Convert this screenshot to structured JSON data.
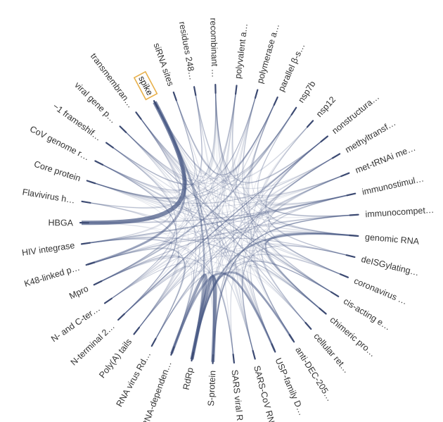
{
  "diagram": {
    "type": "circular-edge-bundling",
    "highlighted_node": "spike",
    "colors": {
      "edge": "#4a5a86",
      "tick": "#3c4a72",
      "label": "#333333",
      "highlight_box": "#e8b04a"
    },
    "nodes": [
      {
        "id": "n1",
        "label": "spike"
      },
      {
        "id": "n2",
        "label": "siRNA sites"
      },
      {
        "id": "n3",
        "label": "residues 248…"
      },
      {
        "id": "n4",
        "label": "recombinant …"
      },
      {
        "id": "n5",
        "label": "polyvalent a…"
      },
      {
        "id": "n6",
        "label": "polymerase a…"
      },
      {
        "id": "n7",
        "label": "parallel β-s…"
      },
      {
        "id": "n8",
        "label": "nsp7b"
      },
      {
        "id": "n9",
        "label": "nsp12"
      },
      {
        "id": "n10",
        "label": "nonstructura…"
      },
      {
        "id": "n11",
        "label": "methyltransf…"
      },
      {
        "id": "n12",
        "label": "met-tRNAi me…"
      },
      {
        "id": "n13",
        "label": "immunostimul…"
      },
      {
        "id": "n14",
        "label": "immunocompet…"
      },
      {
        "id": "n15",
        "label": "genomic RNA"
      },
      {
        "id": "n16",
        "label": "deISGylating…"
      },
      {
        "id": "n17",
        "label": "coronavirus …"
      },
      {
        "id": "n18",
        "label": "cis-acting e…"
      },
      {
        "id": "n19",
        "label": "chimeric pro…"
      },
      {
        "id": "n20",
        "label": "cellular ret…"
      },
      {
        "id": "n21",
        "label": "anti-DEC-205…"
      },
      {
        "id": "n22",
        "label": "USP-family D…"
      },
      {
        "id": "n23",
        "label": "SARS-CoV RNA…"
      },
      {
        "id": "n24",
        "label": "SARS viral R…"
      },
      {
        "id": "n25",
        "label": "S-protein"
      },
      {
        "id": "n26",
        "label": "RdRp"
      },
      {
        "id": "n27",
        "label": "RNA-dependen…"
      },
      {
        "id": "n28",
        "label": "RNA virus Rd…"
      },
      {
        "id": "n29",
        "label": "Poly(A) tails"
      },
      {
        "id": "n30",
        "label": "N-terminal 2…"
      },
      {
        "id": "n31",
        "label": "N- and C-ter…"
      },
      {
        "id": "n32",
        "label": "Mpro"
      },
      {
        "id": "n33",
        "label": "K48-linked p…"
      },
      {
        "id": "n34",
        "label": "HIV integrase"
      },
      {
        "id": "n35",
        "label": "HBGA"
      },
      {
        "id": "n36",
        "label": "Flavivirus h…"
      },
      {
        "id": "n37",
        "label": "Core protein"
      },
      {
        "id": "n38",
        "label": "CoV genome r…"
      },
      {
        "id": "n39",
        "label": "−1 frameshif…"
      },
      {
        "id": "n40",
        "label": "viral gene p…"
      },
      {
        "id": "n41",
        "label": "transmembran…"
      }
    ],
    "heavy_edges": [
      {
        "source": "n1",
        "target": "n35",
        "weight": 6
      },
      {
        "source": "n1",
        "target": "n33",
        "weight": 3
      },
      {
        "source": "n1",
        "target": "n26",
        "weight": 2.5
      },
      {
        "source": "n1",
        "target": "n25",
        "weight": 2
      },
      {
        "source": "n25",
        "target": "n26",
        "weight": 5
      },
      {
        "source": "n26",
        "target": "n27",
        "weight": 4
      },
      {
        "source": "n22",
        "target": "n27",
        "weight": 3
      },
      {
        "source": "n21",
        "target": "n26",
        "weight": 3
      },
      {
        "source": "n15",
        "target": "n26",
        "weight": 2.5
      },
      {
        "source": "n13",
        "target": "n34",
        "weight": 2
      },
      {
        "source": "n8",
        "target": "n32",
        "weight": 2
      },
      {
        "source": "n15",
        "target": "n19",
        "weight": 2
      },
      {
        "source": "n14",
        "target": "n25",
        "weight": 1.6
      },
      {
        "source": "n10",
        "target": "n30",
        "weight": 1.4
      },
      {
        "source": "n11",
        "target": "n25",
        "weight": 1.4
      },
      {
        "source": "n41",
        "target": "n20",
        "weight": 1.2
      },
      {
        "source": "n35",
        "target": "n13",
        "weight": 1.4
      },
      {
        "source": "n33",
        "target": "n16",
        "weight": 1.2
      },
      {
        "source": "n2",
        "target": "n27",
        "weight": 1
      },
      {
        "source": "n40",
        "target": "n18",
        "weight": 1
      }
    ]
  }
}
